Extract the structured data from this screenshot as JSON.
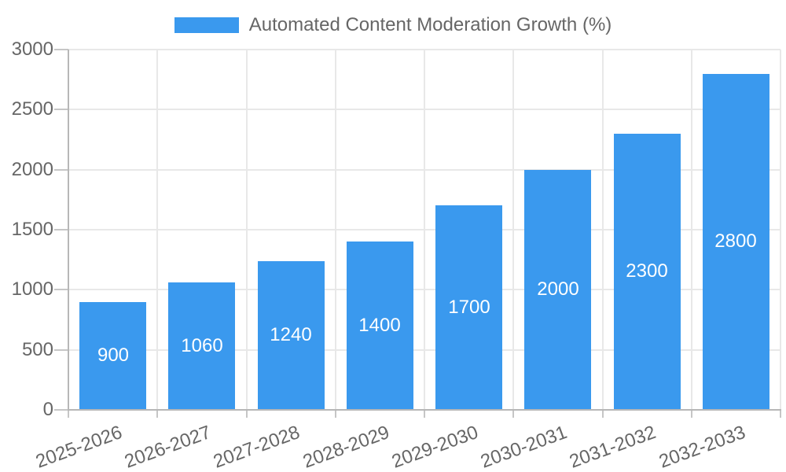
{
  "legend": {
    "label": "Automated Content Moderation Growth (%)"
  },
  "chart_data": {
    "type": "bar",
    "title": "Automated Content Moderation Growth (%)",
    "categories": [
      "2025-2026",
      "2026-2027",
      "2027-2028",
      "2028-2029",
      "2029-2030",
      "2030-2031",
      "2031-2032",
      "2032-2033"
    ],
    "values": [
      900,
      1060,
      1240,
      1400,
      1700,
      2000,
      2300,
      2800
    ],
    "bar_value_labels": [
      "900",
      "1060",
      "1240",
      "1400",
      "1700",
      "2000",
      "2300",
      "2800"
    ],
    "xlabel": "",
    "ylabel": "",
    "ylim": [
      0,
      3000
    ],
    "yticks": [
      0,
      500,
      1000,
      1500,
      2000,
      2500,
      3000
    ],
    "grid": true,
    "legend_position": "top",
    "colors": {
      "bar": "#3a99ee",
      "value_label": "#ffffff",
      "axis_text": "#666666",
      "gridline": "#e8e8e8",
      "axis_line": "#b7b7b7",
      "tick_mark": "#c6c6c6",
      "background": "#ffffff"
    }
  }
}
